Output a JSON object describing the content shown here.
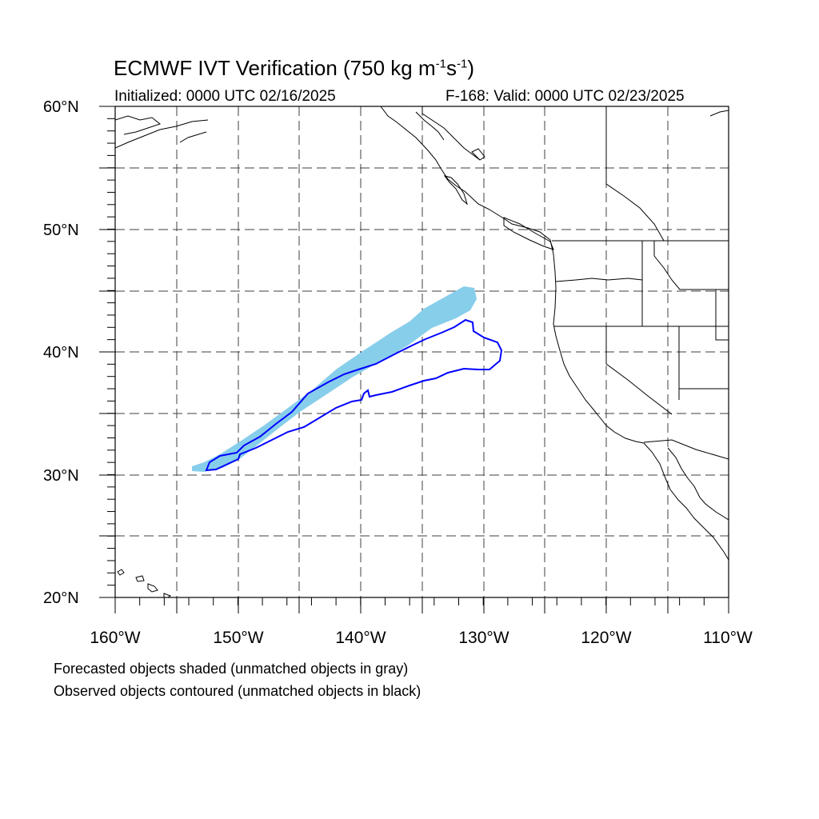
{
  "title": {
    "text": "ECMWF IVT Verification (750 kg m",
    "exp1": "-1",
    "mid": "s",
    "exp2": "-1",
    "close": ")"
  },
  "subtitle_left": "Initialized: 0000 UTC 02/16/2025",
  "subtitle_right": "F-168: Valid: 0000 UTC 02/23/2025",
  "lat_labels": [
    "60°N",
    "50°N",
    "40°N",
    "30°N",
    "20°N"
  ],
  "lon_labels": [
    "160°W",
    "150°W",
    "140°W",
    "130°W",
    "120°W",
    "110°W"
  ],
  "footer": [
    "Forecasted objects shaded (unmatched objects in gray)",
    "Observed objects contoured (unmatched objects in black)"
  ],
  "map_extent": {
    "lon": [
      -160,
      -110
    ],
    "lat": [
      20,
      60
    ]
  },
  "colors": {
    "forecast_fill": "#87ceeb",
    "observed_contour": "#0000ff",
    "coastline": "#000000",
    "grid": "#000000"
  }
}
